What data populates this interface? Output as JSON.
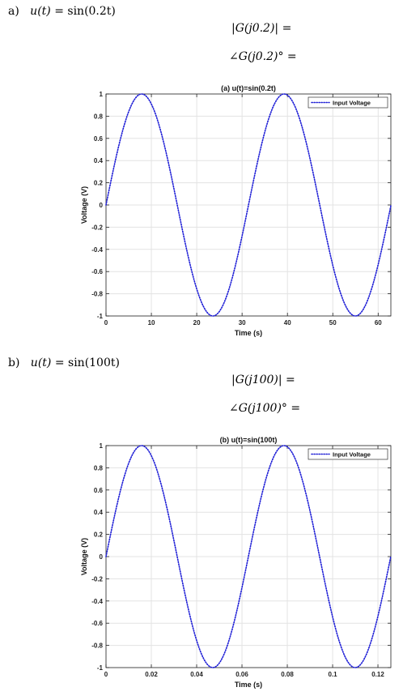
{
  "parts": [
    {
      "letter": "a)",
      "input_label": "u(t)",
      "input_expr": "= sin(0.2t)",
      "magnitude_text": "|G(j0.2)| =",
      "phase_text": "∠G(j0.2)° ="
    },
    {
      "letter": "b)",
      "input_label": "u(t)",
      "input_expr": "= sin(100t)",
      "magnitude_text": "|G(j100)| =",
      "phase_text": "∠G(j100)° ="
    }
  ],
  "chart_data": [
    {
      "type": "line",
      "title": "(a) u(t)=sin(0.2t)",
      "xlabel": "Time (s)",
      "ylabel": "Voltage (V)",
      "xlim": [
        0,
        62.8
      ],
      "ylim": [
        -1,
        1
      ],
      "xticks": [
        "0",
        "10",
        "20",
        "30",
        "40",
        "50",
        "60"
      ],
      "xtick_values": [
        0,
        10,
        20,
        30,
        40,
        50,
        60
      ],
      "yticks": [
        "1",
        "0.8",
        "0.6",
        "0.4",
        "0.2",
        "0",
        "-0.2",
        "-0.4",
        "-0.6",
        "-0.8",
        "-1"
      ],
      "ytick_values": [
        1,
        0.8,
        0.6,
        0.4,
        0.2,
        0,
        -0.2,
        -0.4,
        -0.6,
        -0.8,
        -1
      ],
      "grid": true,
      "legend_position": "top-right",
      "series": [
        {
          "name": "Input Voltage",
          "function": "sin",
          "omega": 0.2,
          "amplitude": 1,
          "color": "#1f1fd6",
          "style": "dotted"
        }
      ]
    },
    {
      "type": "line",
      "title": "(b) u(t)=sin(100t)",
      "xlabel": "Time (s)",
      "ylabel": "Voltage (V)",
      "xlim": [
        0,
        0.1257
      ],
      "ylim": [
        -1,
        1
      ],
      "xticks": [
        "0",
        "0.02",
        "0.04",
        "0.06",
        "0.08",
        "0.1",
        "0.12"
      ],
      "xtick_values": [
        0,
        0.02,
        0.04,
        0.06,
        0.08,
        0.1,
        0.12
      ],
      "yticks": [
        "1",
        "0.8",
        "0.6",
        "0.4",
        "0.2",
        "0",
        "-0.2",
        "-0.4",
        "-0.6",
        "-0.8",
        "-1"
      ],
      "ytick_values": [
        1,
        0.8,
        0.6,
        0.4,
        0.2,
        0,
        -0.2,
        -0.4,
        -0.6,
        -0.8,
        -1
      ],
      "grid": true,
      "legend_position": "top-right",
      "series": [
        {
          "name": "Input Voltage",
          "function": "sin",
          "omega": 100,
          "amplitude": 1,
          "color": "#1f1fd6",
          "style": "dotted"
        }
      ]
    }
  ]
}
